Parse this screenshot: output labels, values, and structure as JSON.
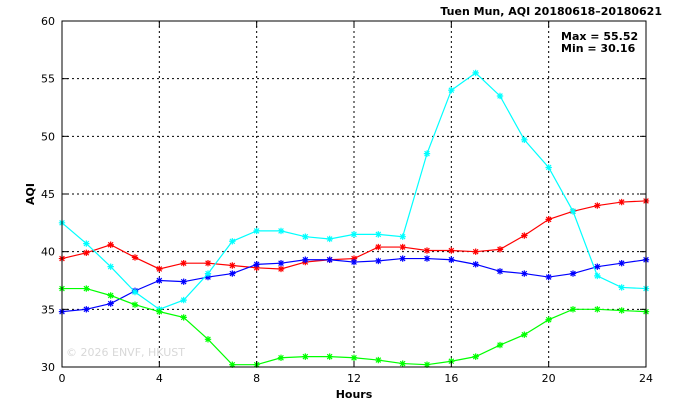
{
  "chart_data": {
    "type": "line",
    "title": "Tuen Mun, AQI 20180618–20180621",
    "xlabel": "Hours",
    "ylabel": "AQI",
    "xlim": [
      0,
      24
    ],
    "ylim": [
      30,
      60
    ],
    "x_ticks": [
      0,
      4,
      8,
      12,
      16,
      20,
      24
    ],
    "y_ticks": [
      30,
      35,
      40,
      45,
      50,
      55,
      60
    ],
    "grid": true,
    "stats": {
      "max_label": "Max = 55.52",
      "min_label": "Min = 30.16"
    },
    "watermark": "© 2026  ENVF, HKUST",
    "x": [
      0,
      1,
      2,
      3,
      4,
      5,
      6,
      7,
      8,
      9,
      10,
      11,
      12,
      13,
      14,
      15,
      16,
      17,
      18,
      19,
      20,
      21,
      22,
      23,
      24
    ],
    "series": [
      {
        "color": "#ff0000",
        "values": [
          39.4,
          39.9,
          40.6,
          39.5,
          38.5,
          39.0,
          39.0,
          38.8,
          38.6,
          38.5,
          39.1,
          39.3,
          39.4,
          40.4,
          40.4,
          40.1,
          40.1,
          40.0,
          40.2,
          41.4,
          42.8,
          43.5,
          44.0,
          44.3,
          44.4
        ]
      },
      {
        "color": "#0000ff",
        "values": [
          34.8,
          35.0,
          35.5,
          36.6,
          37.5,
          37.4,
          37.8,
          38.1,
          38.9,
          39.0,
          39.3,
          39.3,
          39.1,
          39.2,
          39.4,
          39.4,
          39.3,
          38.9,
          38.3,
          38.1,
          37.8,
          38.1,
          38.7,
          39.0,
          39.3
        ]
      },
      {
        "color": "#00ffff",
        "values": [
          42.5,
          40.7,
          38.7,
          36.5,
          35.0,
          35.8,
          38.1,
          40.9,
          41.8,
          41.8,
          41.3,
          41.1,
          41.5,
          41.5,
          41.3,
          48.5,
          54.0,
          55.5,
          53.5,
          49.7,
          47.3,
          43.5,
          37.9,
          36.9,
          36.8
        ]
      },
      {
        "color": "#00ff00",
        "values": [
          36.8,
          36.8,
          36.2,
          35.4,
          34.8,
          34.3,
          32.4,
          30.2,
          30.2,
          30.8,
          30.9,
          30.9,
          30.8,
          30.6,
          30.3,
          30.2,
          30.5,
          30.9,
          31.9,
          32.8,
          34.1,
          35.0,
          35.0,
          34.9,
          34.8
        ]
      }
    ]
  }
}
